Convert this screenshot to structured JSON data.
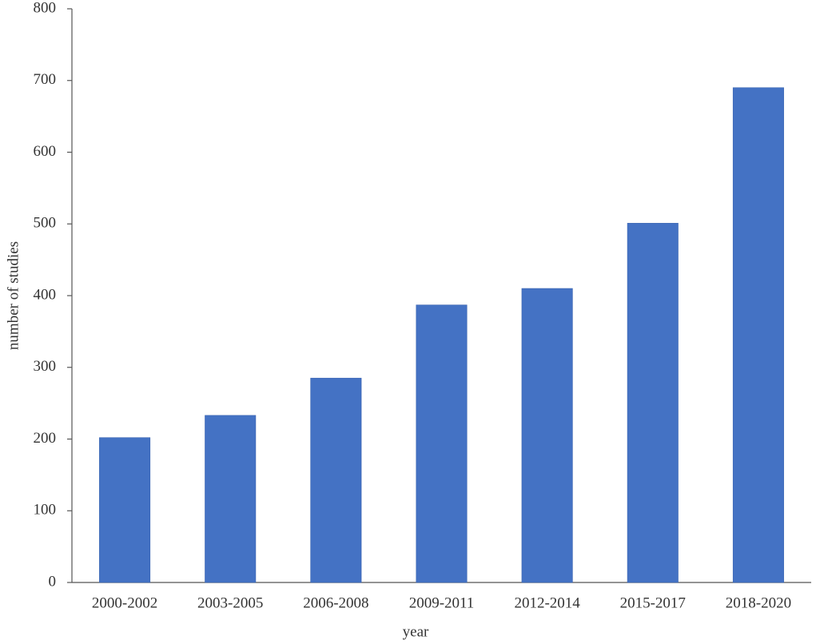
{
  "chart_data": {
    "type": "bar",
    "x_label": "year",
    "y_label": "number of studies",
    "categories": [
      "2000-2002",
      "2003-2005",
      "2006-2008",
      "2009-2011",
      "2012-2014",
      "2015-2017",
      "2018-2020"
    ],
    "values": [
      202,
      233,
      285,
      387,
      410,
      501,
      690
    ],
    "color": "#4472c4",
    "ylim": [
      0,
      800
    ],
    "yticks": [
      0,
      100,
      200,
      300,
      400,
      500,
      600,
      700,
      800
    ],
    "grid": false
  }
}
